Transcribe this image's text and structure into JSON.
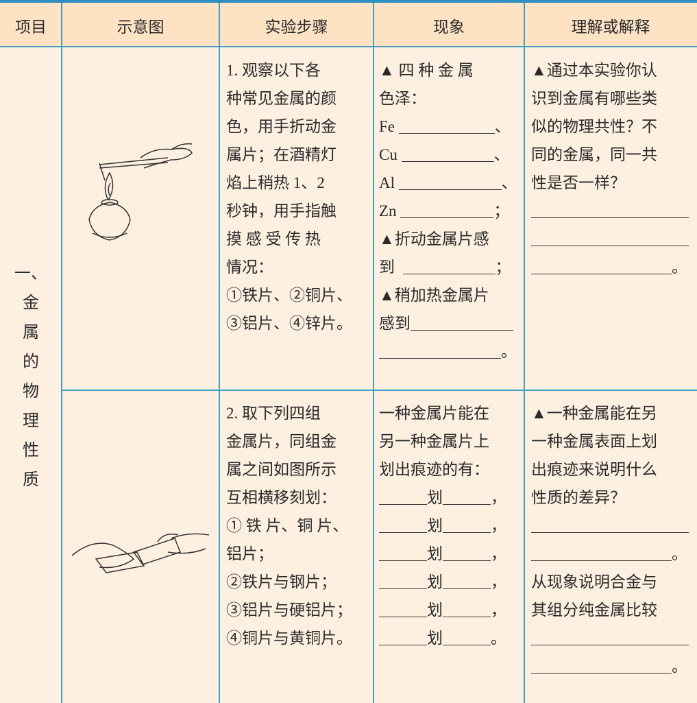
{
  "header": [
    "项目",
    "示意图",
    "实验步骤",
    "现象",
    "理解或解释"
  ],
  "item": [
    "一、",
    "金",
    "属",
    "的",
    "物",
    "理",
    "性",
    "质"
  ],
  "rows": [
    {
      "steps": [
        "1. 观察以下各",
        "种常见金属的颜",
        "色，用手折动金",
        "属片；在酒精灯",
        "焰上稍热 1、2",
        "秒钟，用手指触",
        "摸 感 受 传 热",
        "情况：",
        "①铁片、②铜片、",
        "③铝片、④锌片。"
      ],
      "phenomenon": [
        "▲ 四 种 金 属",
        "色泽：",
        "Fe",
        "、",
        "Cu",
        "、",
        "Al",
        "、",
        "Zn",
        "；",
        "▲折动金属片感",
        "到",
        "；",
        "▲稍加热金属片",
        "感到",
        "。"
      ],
      "explanation": [
        "▲通过本实验你认",
        "识到金属有哪些类",
        "似的物理共性？不",
        "同的金属，同一共",
        "性是否一样？",
        "。"
      ]
    },
    {
      "steps": [
        "2. 取下列四组",
        "金属片，同组金",
        "属之间如图所示",
        "互相横移刻划：",
        "① 铁 片、铜 片、",
        "铝片；",
        "②铁片与钢片；",
        "③铝片与硬铝片；",
        "④铜片与黄铜片。"
      ],
      "phenomenon": [
        "一种金属片能在",
        "另一种金属片上",
        "划出痕迹的有：",
        "划",
        "，",
        "划",
        "，",
        "划",
        "，",
        "划",
        "，",
        "划",
        "，",
        "划",
        "。"
      ],
      "explanation": [
        "▲一种金属能在另",
        "一种金属表面上划",
        "出痕迹来说明什么",
        "性质的差异？",
        "。",
        "从现象说明合金与",
        "其组分纯金属比较",
        "。"
      ]
    }
  ]
}
